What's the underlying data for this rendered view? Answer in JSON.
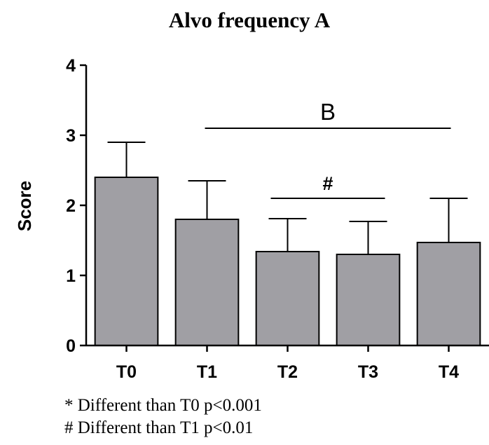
{
  "chart_data": {
    "type": "bar",
    "title": "Alvo frequency A",
    "xlabel": "",
    "ylabel": "Score",
    "ylim": [
      0,
      4
    ],
    "yticks": [
      0,
      1,
      2,
      3,
      4
    ],
    "categories": [
      "T0",
      "T1",
      "T2",
      "T3",
      "T4"
    ],
    "values": [
      2.4,
      1.8,
      1.34,
      1.3,
      1.47
    ],
    "errors": [
      0.5,
      0.55,
      0.47,
      0.47,
      0.63
    ],
    "bar_color": "#a09fa4",
    "grid": false,
    "annotations": [
      {
        "label": "B",
        "from": "T1",
        "to": "T4",
        "y": 3.1
      },
      {
        "label": "#",
        "from": "T2",
        "to": "T3",
        "y": 2.1
      }
    ],
    "footnotes": [
      "* Different than T0 p<0.001",
      "# Different than  T1 p<0.01"
    ]
  }
}
